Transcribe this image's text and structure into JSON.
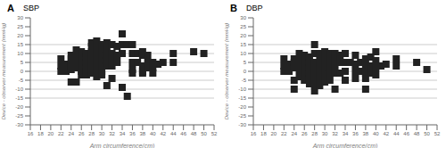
{
  "chart_data": [
    {
      "type": "scatter",
      "title": "SBP",
      "annotations": [
        "A"
      ],
      "xlabel": "Arm circumference(cm)",
      "ylabel": "Device - observer measurement (mmHg)",
      "xlim": [
        16,
        52
      ],
      "ylim": [
        -30,
        30
      ],
      "xticks": [
        16,
        18,
        20,
        22,
        24,
        26,
        28,
        30,
        32,
        34,
        36,
        38,
        40,
        42,
        44,
        46,
        48,
        50,
        52
      ],
      "yticks": [
        -30,
        -25,
        -20,
        -15,
        -10,
        -5,
        0,
        5,
        10,
        15,
        20,
        25,
        30
      ],
      "hlines": [
        -15,
        -10,
        -5,
        0,
        5,
        10,
        15
      ],
      "grid": false,
      "color": "#222222",
      "marker": "square",
      "x": [
        22,
        22,
        22,
        23,
        23,
        24,
        24,
        24,
        24,
        24,
        24,
        25,
        25,
        25,
        25,
        25,
        26,
        26,
        26,
        26,
        26,
        26,
        26,
        27,
        27,
        27,
        27,
        27,
        27,
        28,
        28,
        28,
        28,
        28,
        28,
        28,
        28,
        29,
        29,
        29,
        29,
        29,
        29,
        29,
        29,
        30,
        30,
        30,
        30,
        30,
        30,
        30,
        30,
        31,
        31,
        31,
        31,
        31,
        31,
        32,
        32,
        32,
        32,
        32,
        33,
        33,
        33,
        34,
        34,
        34,
        34,
        35,
        35,
        36,
        36,
        36,
        36,
        36,
        37,
        37,
        38,
        38,
        38,
        38,
        38,
        39,
        39,
        39,
        40,
        40,
        40,
        41,
        42,
        44,
        44,
        48,
        50
      ],
      "values": [
        7,
        3,
        0,
        4,
        0,
        9,
        7,
        5,
        3,
        1,
        -6,
        12,
        9,
        5,
        2,
        -6,
        11,
        9,
        6,
        5,
        3,
        0,
        -2,
        10,
        8,
        5,
        2,
        0,
        -2,
        16,
        14,
        11,
        9,
        7,
        5,
        2,
        -1,
        17,
        14,
        11,
        8,
        5,
        3,
        0,
        -3,
        15,
        13,
        10,
        8,
        5,
        3,
        0,
        -2,
        16,
        12,
        9,
        6,
        3,
        -8,
        15,
        10,
        7,
        3,
        -4,
        14,
        9,
        5,
        21,
        15,
        10,
        -9,
        15,
        -14,
        15,
        10,
        5,
        1,
        -1,
        10,
        5,
        11,
        9,
        3,
        0,
        -1,
        9,
        5,
        2,
        5,
        2,
        -1,
        4,
        5,
        10,
        5,
        11,
        10
      ]
    },
    {
      "type": "scatter",
      "title": "DBP",
      "annotations": [
        "B"
      ],
      "xlabel": "Arm circumference(cm)",
      "ylabel": "Device - observer measurement (mmHg)",
      "xlim": [
        16,
        52
      ],
      "ylim": [
        -30,
        30
      ],
      "xticks": [
        16,
        18,
        20,
        22,
        24,
        26,
        28,
        30,
        32,
        34,
        36,
        38,
        40,
        42,
        44,
        46,
        48,
        50,
        52
      ],
      "yticks": [
        -30,
        -25,
        -20,
        -15,
        -10,
        -5,
        0,
        5,
        10,
        15,
        20,
        25,
        30
      ],
      "hlines": [
        -15,
        -10,
        -5,
        0,
        5,
        10,
        15
      ],
      "grid": false,
      "color": "#222222",
      "marker": "square",
      "x": [
        22,
        22,
        22,
        23,
        23,
        24,
        24,
        24,
        24,
        24,
        25,
        25,
        25,
        25,
        25,
        26,
        26,
        26,
        26,
        26,
        26,
        27,
        27,
        27,
        27,
        27,
        27,
        28,
        28,
        28,
        28,
        28,
        28,
        28,
        29,
        29,
        29,
        29,
        29,
        29,
        30,
        30,
        30,
        30,
        30,
        30,
        31,
        31,
        31,
        31,
        31,
        32,
        32,
        32,
        32,
        32,
        33,
        33,
        33,
        34,
        34,
        34,
        34,
        35,
        36,
        36,
        36,
        36,
        37,
        37,
        38,
        38,
        38,
        38,
        38,
        39,
        39,
        39,
        40,
        40,
        40,
        40,
        41,
        42,
        44,
        44,
        48,
        50
      ],
      "values": [
        7,
        3,
        0,
        4,
        0,
        7,
        5,
        2,
        -5,
        -10,
        10,
        7,
        4,
        1,
        -3,
        9,
        6,
        3,
        0,
        -3,
        -5,
        8,
        5,
        2,
        -1,
        -4,
        -7,
        15,
        10,
        5,
        1,
        -3,
        -7,
        -11,
        10,
        7,
        3,
        0,
        -4,
        -8,
        11,
        8,
        4,
        1,
        -2,
        -6,
        10,
        6,
        2,
        -1,
        -5,
        10,
        6,
        2,
        -1,
        -10,
        9,
        5,
        -1,
        10,
        5,
        0,
        -5,
        5,
        9,
        4,
        0,
        -4,
        5,
        0,
        7,
        3,
        -1,
        -4,
        -10,
        8,
        3,
        -1,
        11,
        6,
        2,
        -2,
        3,
        4,
        7,
        3,
        5,
        1
      ]
    }
  ]
}
